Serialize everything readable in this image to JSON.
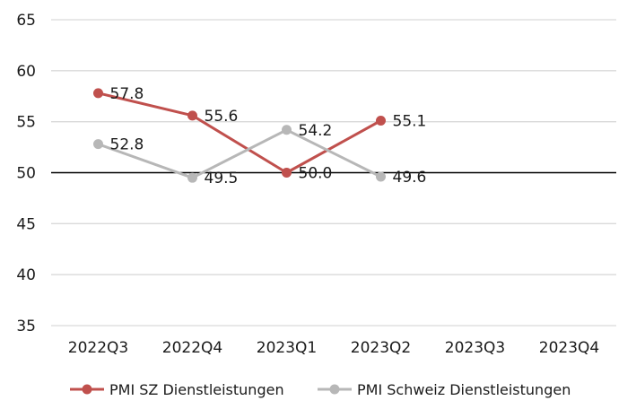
{
  "chart_data": {
    "type": "line",
    "title": "",
    "xlabel": "",
    "ylabel": "",
    "categories": [
      "2022Q3",
      "2022Q4",
      "2023Q1",
      "2023Q2",
      "2023Q3",
      "2023Q4"
    ],
    "ylim": [
      35,
      65
    ],
    "yticks": [
      35,
      40,
      45,
      50,
      55,
      60,
      65
    ],
    "reference_line": 50,
    "grid": true,
    "legend_position": "bottom",
    "series": [
      {
        "name": "PMI SZ Dienstleistungen",
        "color": "#c0504d",
        "values": [
          57.8,
          55.6,
          50.0,
          55.1,
          null,
          null
        ],
        "labels": [
          "57.8",
          "55.6",
          "50.0",
          "55.1",
          "",
          ""
        ]
      },
      {
        "name": "PMI Schweiz Dienstleistungen",
        "color": "#b7b7b7",
        "values": [
          52.8,
          49.5,
          54.2,
          49.6,
          null,
          null
        ],
        "labels": [
          "52.8",
          "49.5",
          "54.2",
          "49.6",
          "",
          ""
        ]
      }
    ]
  }
}
